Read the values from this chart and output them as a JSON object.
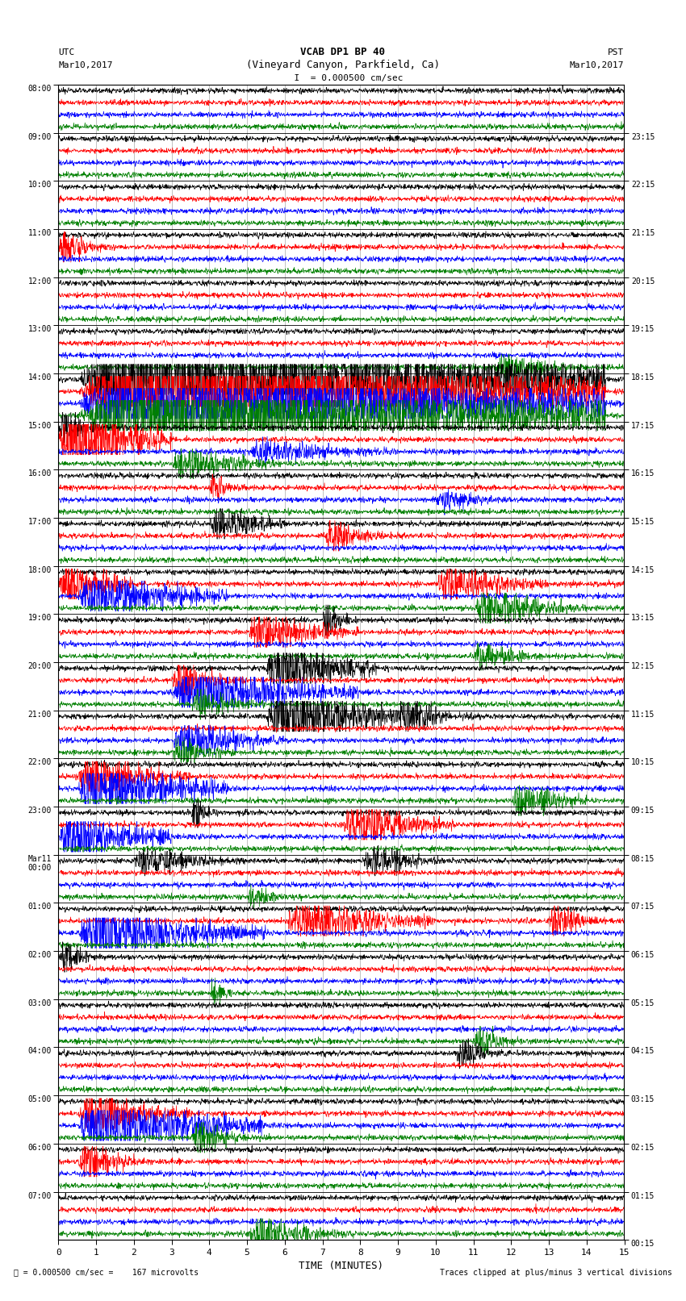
{
  "title_line1": "VCAB DP1 BP 40",
  "title_line2": "(Vineyard Canyon, Parkfield, Ca)",
  "title_line3": "  I  = 0.000500 cm/sec",
  "label_left_top": "UTC",
  "label_left_date": "Mar10,2017",
  "label_right_top": "PST",
  "label_right_date": "Mar10,2017",
  "xlabel": "TIME (MINUTES)",
  "footer_left": "= 0.000500 cm/sec =    167 microvolts",
  "footer_right": "Traces clipped at plus/minus 3 vertical divisions",
  "x_min": 0,
  "x_max": 15,
  "x_ticks": [
    0,
    1,
    2,
    3,
    4,
    5,
    6,
    7,
    8,
    9,
    10,
    11,
    12,
    13,
    14,
    15
  ],
  "bg_color": "#ffffff",
  "trace_color_order": [
    "black",
    "red",
    "blue",
    "green"
  ],
  "n_hours": 24,
  "traces_per_hour": 4,
  "left_labels_utc": [
    "08:00",
    "09:00",
    "10:00",
    "11:00",
    "12:00",
    "13:00",
    "14:00",
    "15:00",
    "16:00",
    "17:00",
    "18:00",
    "19:00",
    "20:00",
    "21:00",
    "22:00",
    "23:00",
    "Mar11\n00:00",
    "01:00",
    "02:00",
    "03:00",
    "04:00",
    "05:00",
    "06:00",
    "07:00"
  ],
  "right_labels_pst": [
    "00:15",
    "01:15",
    "02:15",
    "03:15",
    "04:15",
    "05:15",
    "06:15",
    "07:15",
    "08:15",
    "09:15",
    "10:15",
    "11:15",
    "12:15",
    "13:15",
    "14:15",
    "15:15",
    "16:15",
    "17:15",
    "18:15",
    "19:15",
    "20:15",
    "21:15",
    "22:15",
    "23:15"
  ],
  "vgrid_color": "#aaaaaa",
  "hline_color": "#cccccc"
}
